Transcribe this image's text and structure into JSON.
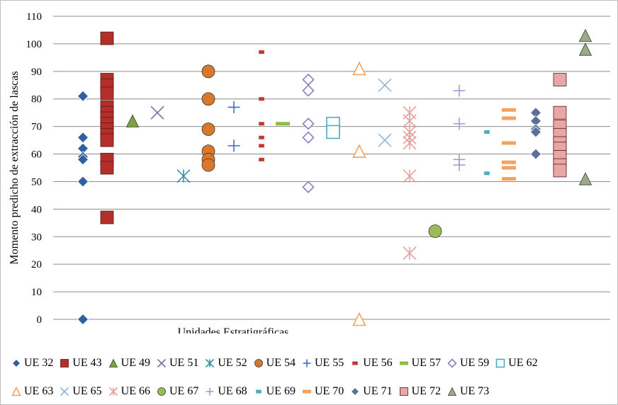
{
  "chart_data": {
    "type": "scatter",
    "ylabel": "Momento predicho de extracción de lascas",
    "xlabel": "Unidades Estratigráficas",
    "ylim": [
      0,
      110
    ],
    "yticks": [
      "0",
      "10",
      "20",
      "30",
      "40",
      "50",
      "60",
      "70",
      "80",
      "90",
      "100",
      "110"
    ],
    "grid": "horizontal",
    "legend_position": "bottom",
    "series": [
      {
        "name": "UE 32",
        "color": "#2e5f9e",
        "marker": "diamond",
        "x": 1,
        "values": [
          81,
          66,
          62,
          59,
          58,
          50,
          0
        ]
      },
      {
        "name": "UE 43",
        "color": "#b22f2a",
        "marker": "square",
        "x": 2,
        "values": [
          102,
          87,
          85,
          82,
          77,
          75,
          73,
          71,
          69,
          67,
          65,
          58,
          55,
          37
        ]
      },
      {
        "name": "UE 49",
        "color": "#7aa33f",
        "marker": "triangle",
        "x": 3,
        "values": [
          72
        ]
      },
      {
        "name": "UE 51",
        "color": "#7b6ea8",
        "marker": "x",
        "x": 4,
        "values": [
          75
        ]
      },
      {
        "name": "UE 52",
        "color": "#3b8fa8",
        "marker": "star",
        "x": 5,
        "values": [
          52
        ]
      },
      {
        "name": "UE 54",
        "color": "#d9772b",
        "marker": "circle",
        "x": 6,
        "values": [
          90,
          80,
          69,
          61,
          58,
          56
        ]
      },
      {
        "name": "UE 55",
        "color": "#3d6fc4",
        "marker": "plus",
        "x": 7,
        "values": [
          77,
          63
        ]
      },
      {
        "name": "UE 56",
        "color": "#c0392b",
        "marker": "dash",
        "x": 8,
        "values": [
          97,
          80,
          71,
          66,
          63,
          58
        ]
      },
      {
        "name": "UE 57",
        "color": "#8cbf3f",
        "marker": "bar",
        "x": 9,
        "values": [
          71
        ]
      },
      {
        "name": "UE 59",
        "color": "#8e7cc3",
        "marker": "diamond-open",
        "x": 10,
        "values": [
          87,
          83,
          71,
          66,
          48
        ]
      },
      {
        "name": "UE 62",
        "color": "#4bacc6",
        "marker": "square-open",
        "x": 11,
        "values": [
          71,
          68
        ]
      },
      {
        "name": "UE 63",
        "color": "#f5a25d",
        "marker": "triangle-open",
        "x": 12,
        "values": [
          91,
          61,
          0
        ]
      },
      {
        "name": "UE 65",
        "color": "#95b3d7",
        "marker": "x",
        "x": 13,
        "values": [
          85,
          65
        ]
      },
      {
        "name": "UE 66",
        "color": "#e6a0a0",
        "marker": "star",
        "x": 14,
        "values": [
          75,
          72,
          68,
          66,
          64,
          52,
          24
        ]
      },
      {
        "name": "UE 67",
        "color": "#9bbb59",
        "marker": "circle",
        "x": 15,
        "values": [
          32
        ]
      },
      {
        "name": "UE 68",
        "color": "#a39bd1",
        "marker": "plus",
        "x": 16,
        "values": [
          83,
          71,
          58,
          56
        ]
      },
      {
        "name": "UE 69",
        "color": "#4bacc6",
        "marker": "dash",
        "x": 17,
        "values": [
          68,
          53
        ]
      },
      {
        "name": "UE 70",
        "color": "#f5a25d",
        "marker": "bar",
        "x": 18,
        "values": [
          76,
          73,
          64,
          57,
          55,
          51
        ]
      },
      {
        "name": "UE 71",
        "color": "#5b6f99",
        "marker": "diamond",
        "x": 19,
        "values": [
          75,
          72,
          69,
          68,
          60
        ]
      },
      {
        "name": "UE 72",
        "color": "#e7a7a5",
        "marker": "square",
        "x": 20,
        "values": [
          87,
          75,
          70,
          67,
          64,
          62,
          59,
          56,
          54
        ]
      },
      {
        "name": "UE 73",
        "color": "#9aab86",
        "marker": "triangle",
        "x": 21,
        "values": [
          103,
          98,
          51
        ]
      }
    ]
  }
}
